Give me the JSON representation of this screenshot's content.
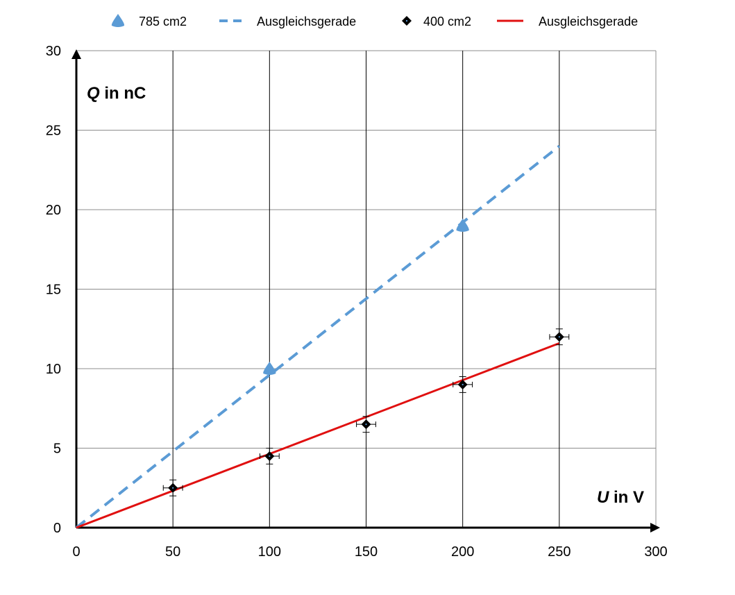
{
  "chart_data": {
    "type": "scatter",
    "title": "",
    "xlabel": {
      "var": "U",
      "rest": " in V"
    },
    "ylabel": {
      "var": "Q",
      "rest": " in nC"
    },
    "xlim": [
      0,
      300
    ],
    "ylim": [
      0,
      30
    ],
    "xticks": [
      0,
      50,
      100,
      150,
      200,
      250,
      300
    ],
    "yticks": [
      0,
      5,
      10,
      15,
      20,
      25,
      30
    ],
    "grid": true,
    "legend_position": "top",
    "series": [
      {
        "name": "785 cm2",
        "kind": "points",
        "marker": "triangle",
        "color": "#5B9BD5",
        "x": [
          100,
          200
        ],
        "y": [
          10,
          19
        ]
      },
      {
        "name": "Ausgleichsgerade",
        "kind": "line",
        "dash": true,
        "color": "#5B9BD5",
        "x": [
          0,
          250
        ],
        "y": [
          0,
          24
        ]
      },
      {
        "name": "400 cm2",
        "kind": "points",
        "marker": "diamond",
        "color": "#000000",
        "x": [
          50,
          100,
          150,
          200,
          250
        ],
        "y": [
          2.5,
          4.5,
          6.5,
          9,
          12
        ],
        "x_err": 5,
        "y_err": 0.5
      },
      {
        "name": "Ausgleichsgerade",
        "kind": "line",
        "dash": false,
        "color": "#E01010",
        "x": [
          0,
          250
        ],
        "y": [
          0,
          11.6
        ]
      }
    ]
  }
}
